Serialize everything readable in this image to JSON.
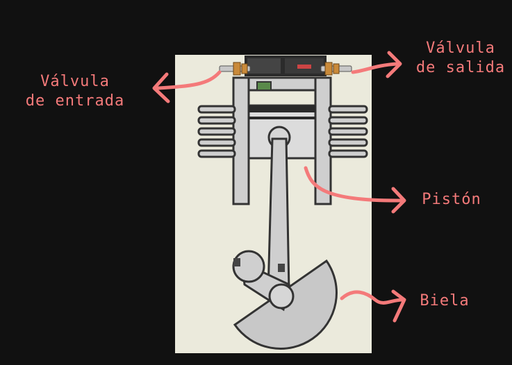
{
  "labels": {
    "intake_valve": [
      "Válvula",
      "de entrada"
    ],
    "exhaust_valve": [
      "Válvula",
      "de salida"
    ],
    "piston": "Pistón",
    "connecting_rod": "Biela"
  },
  "colors": {
    "background": "#111111",
    "panel": "#ebeadc",
    "label": "#f47a7a",
    "metal": "#cfcfcf",
    "outline": "#333333"
  }
}
